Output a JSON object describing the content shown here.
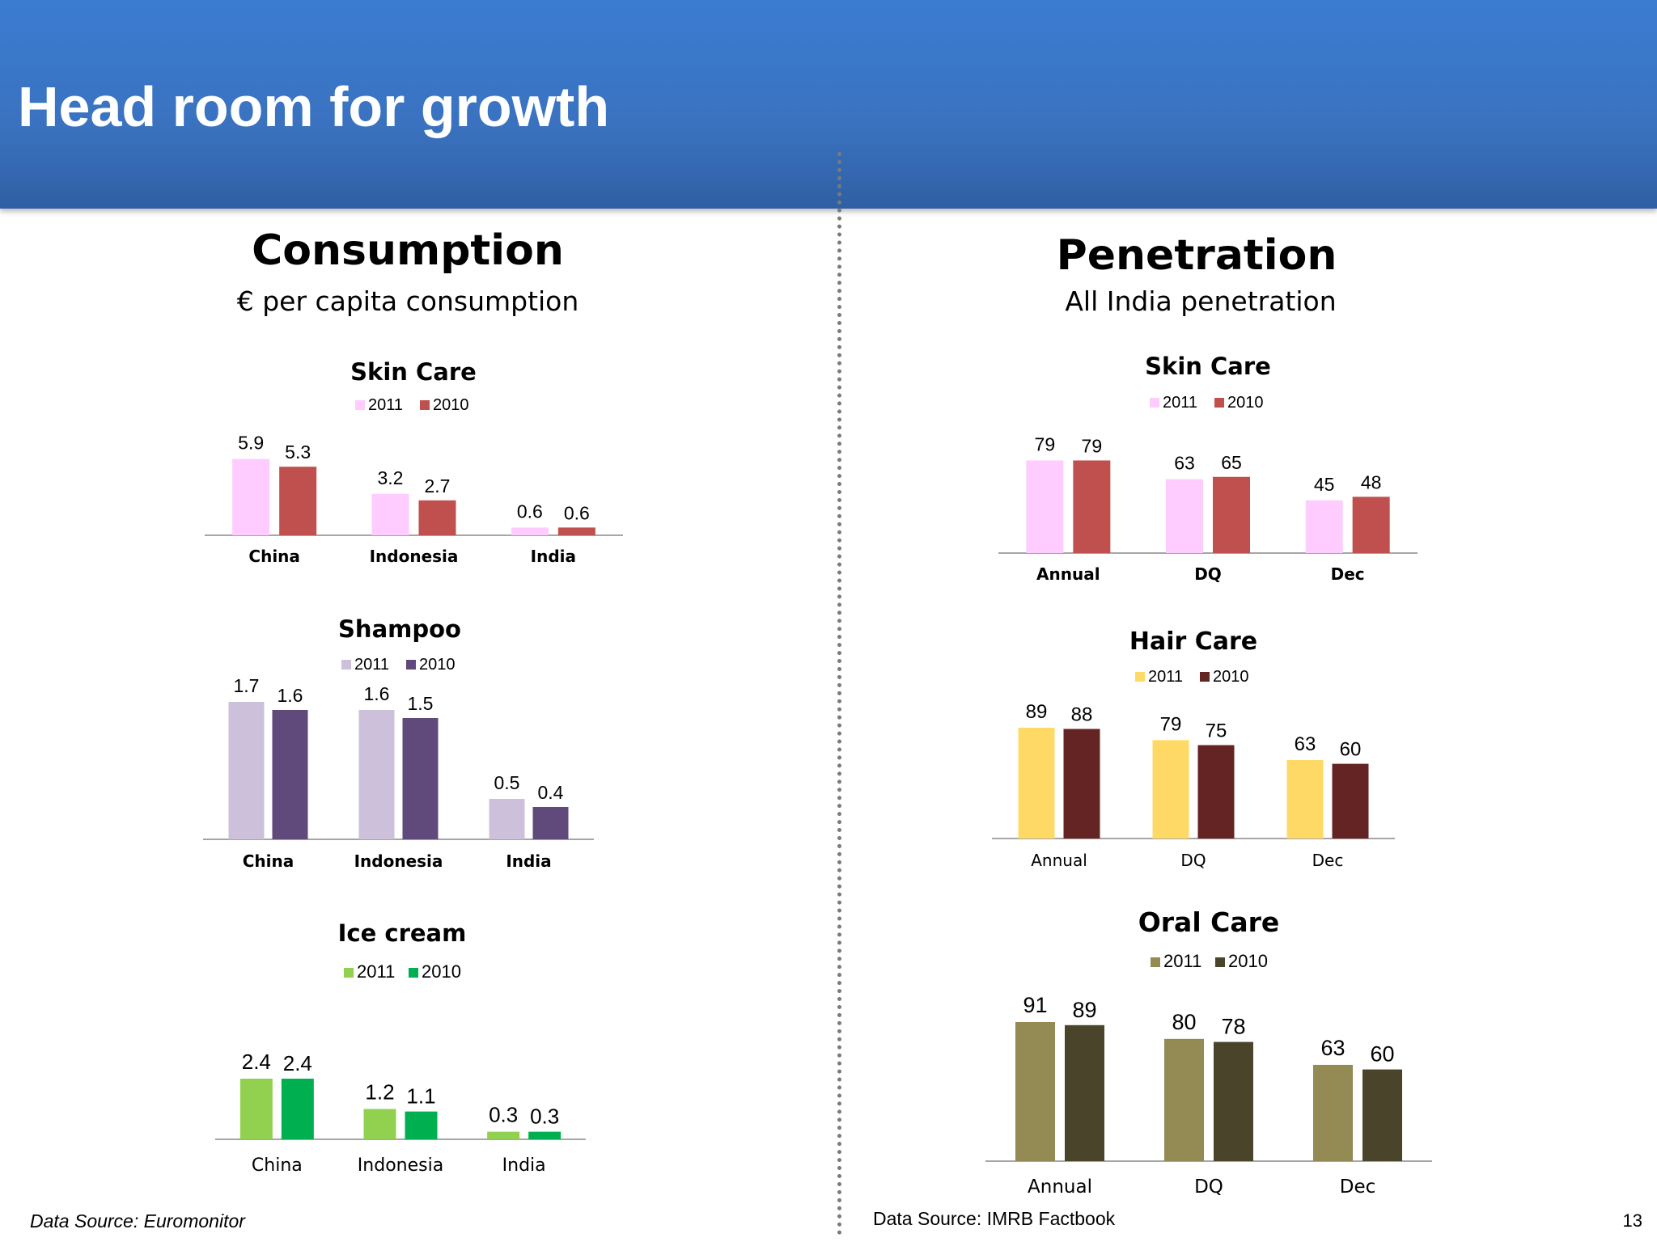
{
  "slide": {
    "title": "Head room for growth",
    "page_number": "13"
  },
  "left_section": {
    "title": "Consumption",
    "subtitle": "€ per capita consumption",
    "source": "Data Source: Euromonitor"
  },
  "right_section": {
    "title": "Penetration",
    "subtitle": "All India penetration",
    "source": "Data Source: IMRB Factbook"
  },
  "chart_data": [
    {
      "id": "skin-care-consumption",
      "type": "bar",
      "title": "Skin Care",
      "categories": [
        "China",
        "Indonesia",
        "India"
      ],
      "series": [
        {
          "name": "2011",
          "values": [
            5.9,
            3.2,
            0.6
          ],
          "color": "#ffccff"
        },
        {
          "name": "2010",
          "values": [
            5.3,
            2.7,
            0.6
          ],
          "color": "#c0504d"
        }
      ],
      "labels": [
        [
          "5.9",
          "3.2",
          "0.6"
        ],
        [
          "5.3",
          "2.7",
          "0.6"
        ]
      ],
      "ylim": [
        0,
        10
      ]
    },
    {
      "id": "shampoo-consumption",
      "type": "bar",
      "title": "Shampoo",
      "categories": [
        "China",
        "Indonesia",
        "India"
      ],
      "series": [
        {
          "name": "2011",
          "values": [
            1.7,
            1.6,
            0.5
          ],
          "color": "#ccc0da"
        },
        {
          "name": "2010",
          "values": [
            1.6,
            1.5,
            0.4
          ],
          "color": "#604a7b"
        }
      ],
      "labels": [
        [
          "1.7",
          "1.6",
          "0.5"
        ],
        [
          "1.6",
          "1.5",
          "0.4"
        ]
      ],
      "ylim": [
        0,
        1.9
      ]
    },
    {
      "id": "ice-cream-consumption",
      "type": "bar",
      "title": "Ice cream",
      "categories": [
        "China",
        "Indonesia",
        "India"
      ],
      "series": [
        {
          "name": "2011",
          "values": [
            2.4,
            1.2,
            0.3
          ],
          "color": "#92d050"
        },
        {
          "name": "2010",
          "values": [
            2.4,
            1.1,
            0.3
          ],
          "color": "#00b050"
        }
      ],
      "labels": [
        [
          "2.4",
          "1.2",
          "0.3"
        ],
        [
          "2.4",
          "1.1",
          "0.3"
        ]
      ],
      "ylim": [
        0,
        3.2
      ]
    },
    {
      "id": "skin-care-penetration",
      "type": "bar",
      "title": "Skin Care",
      "categories": [
        "Annual",
        "DQ",
        "Dec"
      ],
      "series": [
        {
          "name": "2011",
          "values": [
            79,
            63,
            45
          ],
          "color": "#ffccff"
        },
        {
          "name": "2010",
          "values": [
            79,
            65,
            48
          ],
          "color": "#c0504d"
        }
      ],
      "labels": [
        [
          "79",
          "63",
          "45"
        ],
        [
          "79",
          "65",
          "48"
        ]
      ],
      "ylim": [
        0,
        100
      ]
    },
    {
      "id": "hair-care-penetration",
      "type": "bar",
      "title": "Hair Care",
      "categories": [
        "Annual",
        "DQ",
        "Dec"
      ],
      "series": [
        {
          "name": "2011",
          "values": [
            89,
            79,
            63
          ],
          "color": "#ffd966"
        },
        {
          "name": "2010",
          "values": [
            88,
            75,
            60
          ],
          "color": "#632423"
        }
      ],
      "labels": [
        [
          "89",
          "79",
          "63"
        ],
        [
          "88",
          "75",
          "60"
        ]
      ],
      "ylim": [
        0,
        100
      ]
    },
    {
      "id": "oral-care-penetration",
      "type": "bar",
      "title": "Oral Care",
      "categories": [
        "Annual",
        "DQ",
        "Dec"
      ],
      "series": [
        {
          "name": "2011",
          "values": [
            91,
            80,
            63
          ],
          "color": "#948a54"
        },
        {
          "name": "2010",
          "values": [
            89,
            78,
            60
          ],
          "color": "#4a452a"
        }
      ],
      "labels": [
        [
          "91",
          "80",
          "63"
        ],
        [
          "89",
          "78",
          "60"
        ]
      ],
      "ylim": [
        0,
        100
      ]
    }
  ]
}
